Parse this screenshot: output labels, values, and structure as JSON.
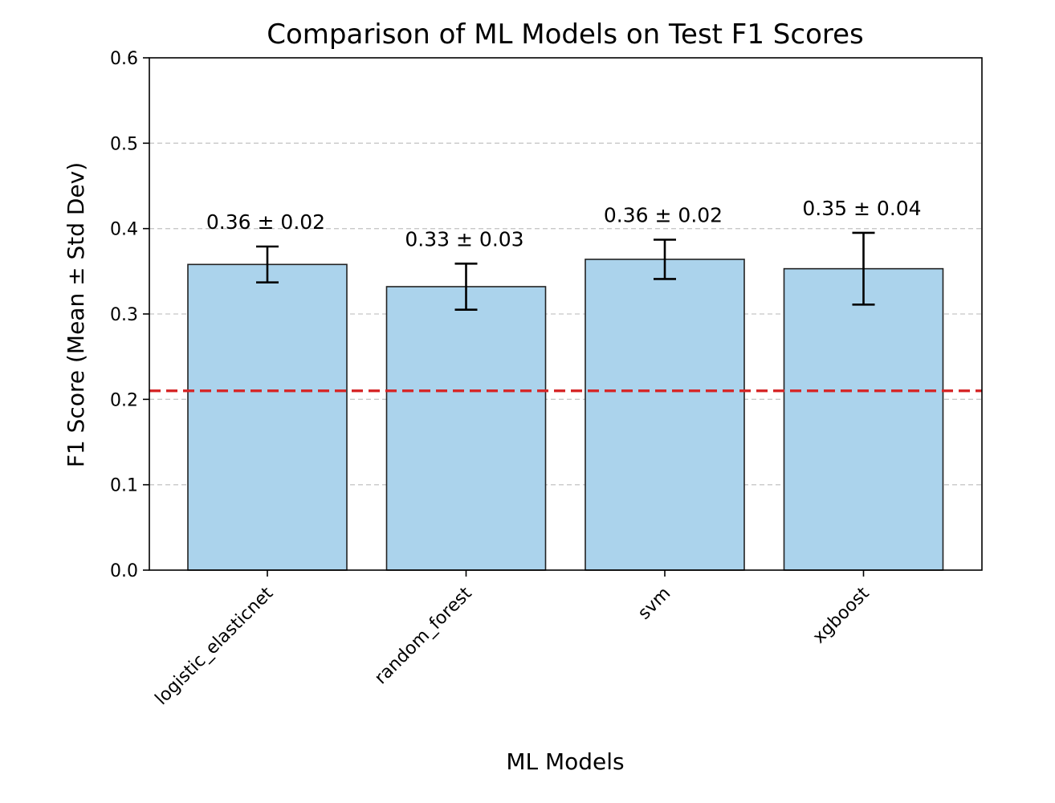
{
  "chart_data": {
    "type": "bar",
    "title": "Comparison of ML Models on Test F1 Scores",
    "xlabel": "ML Models",
    "ylabel": "F1 Score (Mean ± Std Dev)",
    "categories": [
      "logistic_elasticnet",
      "random_forest",
      "svm",
      "xgboost"
    ],
    "values": [
      0.358,
      0.332,
      0.364,
      0.353
    ],
    "errors": [
      0.021,
      0.027,
      0.023,
      0.042
    ],
    "bar_labels": [
      "0.36 ± 0.02",
      "0.33 ± 0.03",
      "0.36 ± 0.02",
      "0.35 ± 0.04"
    ],
    "ylim": [
      0,
      0.6
    ],
    "yticks": [
      0.0,
      0.1,
      0.2,
      0.3,
      0.4,
      0.5,
      0.6
    ],
    "ytick_labels": [
      "0.0",
      "0.1",
      "0.2",
      "0.3",
      "0.4",
      "0.5",
      "0.6"
    ],
    "reference_line": {
      "y": 0.21,
      "style": "dashed",
      "color": "#d62728"
    },
    "grid": {
      "axis": "y",
      "style": "dashed",
      "color": "#c8c8c8"
    },
    "colors": {
      "bar_fill": "#abd3ec",
      "bar_edge": "#222222",
      "error_bar": "#000000"
    }
  }
}
